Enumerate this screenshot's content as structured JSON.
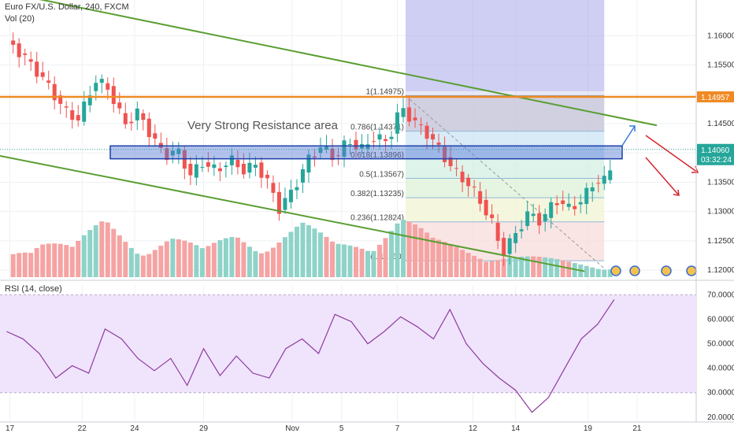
{
  "header": {
    "symbol_title": "Euro FX/U.S. Dollar, 240, FXCM",
    "volume_label": "Vol (20)"
  },
  "rsi_panel": {
    "label": "RSI (14, close)"
  },
  "annotations": {
    "resistance": "Very Strong Resistance area"
  },
  "price_badges": {
    "upper": "1.14957",
    "current": "1.14060",
    "countdown": "03:32:24"
  },
  "fibonacci": {
    "levels": [
      {
        "ratio_label": "1(1.14975)",
        "value": 1.14975,
        "fill": "#d6d6d6"
      },
      {
        "ratio_label": "0.786(1.14371)",
        "value": 1.14371,
        "fill": "#cfe6f5"
      },
      {
        "ratio_label": "0.618(1.13896)",
        "value": 1.13896,
        "fill": "#d6f0e5"
      },
      {
        "ratio_label": "0.5(1.13567)",
        "value": 1.13567,
        "fill": "#dff3da"
      },
      {
        "ratio_label": "0.382(1.13235)",
        "value": 1.13235,
        "fill": "#f2f4d6"
      },
      {
        "ratio_label": "0.236(1.12824)",
        "value": 1.12824,
        "fill": "#f9dede"
      },
      {
        "ratio_label": "0(1.12160)",
        "value": 1.1216,
        "fill": "#ffffff"
      }
    ]
  },
  "chart_data": [
    {
      "type": "candlestick",
      "title": "Euro FX/U.S. Dollar, 240, FXCM",
      "x_tick_labels": [
        "17",
        "22",
        "24",
        "29",
        "Nov",
        "5",
        "7",
        "12",
        "14",
        "19",
        "21"
      ],
      "y_tick_labels": [
        "1.12000",
        "1.12500",
        "1.13000",
        "1.13500",
        "1.14000",
        "1.14500",
        "1.15000",
        "1.15500",
        "1.16000"
      ],
      "ylim": [
        1.1188,
        1.1661
      ],
      "colors": {
        "up": "#26a69a",
        "down": "#ef5350",
        "vol_up": "#8fd3c8",
        "vol_down": "#f5a3a3"
      },
      "close_path": [
        [
          0,
          1.1594
        ],
        [
          14,
          1.1554
        ],
        [
          24,
          1.152
        ],
        [
          36,
          1.147
        ],
        [
          44,
          1.1457
        ],
        [
          54,
          1.1525
        ],
        [
          62,
          1.151
        ],
        [
          72,
          1.1448
        ],
        [
          80,
          1.147
        ],
        [
          88,
          1.143
        ],
        [
          96,
          1.1395
        ],
        [
          104,
          1.1405
        ],
        [
          112,
          1.1362
        ],
        [
          120,
          1.1385
        ],
        [
          128,
          1.1368
        ],
        [
          136,
          1.139
        ],
        [
          144,
          1.137
        ],
        [
          152,
          1.138
        ],
        [
          160,
          1.1345
        ],
        [
          166,
          1.1305
        ],
        [
          174,
          1.1335
        ],
        [
          184,
          1.139
        ],
        [
          192,
          1.1412
        ],
        [
          200,
          1.139
        ],
        [
          208,
          1.1422
        ],
        [
          216,
          1.1405
        ],
        [
          224,
          1.1428
        ],
        [
          232,
          1.1418
        ],
        [
          240,
          1.1478
        ],
        [
          250,
          1.1448
        ],
        [
          258,
          1.1428
        ],
        [
          266,
          1.1395
        ],
        [
          274,
          1.1365
        ],
        [
          282,
          1.1345
        ],
        [
          290,
          1.131
        ],
        [
          296,
          1.1278
        ],
        [
          302,
          1.1228
        ],
        [
          310,
          1.1262
        ],
        [
          318,
          1.1298
        ],
        [
          326,
          1.1282
        ],
        [
          334,
          1.1322
        ],
        [
          342,
          1.1305
        ],
        [
          350,
          1.1318
        ],
        [
          358,
          1.1352
        ],
        [
          366,
          1.1352
        ],
        [
          370,
          1.1406
        ]
      ],
      "volume_path": [
        [
          0,
          0.35
        ],
        [
          20,
          0.7
        ],
        [
          40,
          0.45
        ],
        [
          60,
          0.85
        ],
        [
          80,
          0.5
        ],
        [
          100,
          0.65
        ],
        [
          120,
          0.4
        ],
        [
          140,
          0.7
        ],
        [
          160,
          0.55
        ],
        [
          180,
          0.8
        ],
        [
          200,
          0.5
        ],
        [
          220,
          0.6
        ],
        [
          240,
          0.95
        ],
        [
          260,
          0.55
        ],
        [
          280,
          0.45
        ],
        [
          300,
          0.35
        ],
        [
          320,
          0.3
        ],
        [
          340,
          0.25
        ],
        [
          360,
          0.2
        ],
        [
          370,
          0.15
        ]
      ],
      "lines": [
        {
          "name": "upper-channel",
          "color": "#5a9e32",
          "from": [
            -4,
            1.1676
          ],
          "to": [
            396,
            1.1447
          ]
        },
        {
          "name": "lower-channel",
          "color": "#5a9e32",
          "from": [
            -4,
            1.1395
          ],
          "to": [
            352,
            1.1198
          ]
        },
        {
          "name": "horizontal-resistance",
          "color": "#f08a24",
          "from": [
            -4,
            1.14957
          ],
          "to": [
            420,
            1.14957
          ]
        }
      ]
    },
    {
      "type": "line",
      "title": "RSI (14, close)",
      "y_tick_labels": [
        "20.0000",
        "30.0000",
        "40.0000",
        "50.0000",
        "60.0000",
        "70.0000"
      ],
      "ylim": [
        18,
        74
      ],
      "bands": [
        30,
        70
      ],
      "x": [
        0,
        10,
        20,
        30,
        40,
        50,
        60,
        70,
        80,
        90,
        100,
        110,
        120,
        130,
        140,
        150,
        160,
        170,
        180,
        190,
        200,
        210,
        220,
        230,
        240,
        250,
        260,
        270,
        280,
        290,
        300,
        310,
        320,
        330,
        340,
        350,
        360,
        370
      ],
      "values": [
        55,
        52,
        46,
        36,
        41,
        38,
        56,
        52,
        44,
        39,
        44,
        33,
        48,
        37,
        45,
        38,
        36,
        48,
        52,
        46,
        62,
        59,
        50,
        55,
        61,
        57,
        52,
        64,
        50,
        42,
        36,
        31,
        22,
        28,
        40,
        52,
        58,
        68
      ]
    }
  ]
}
